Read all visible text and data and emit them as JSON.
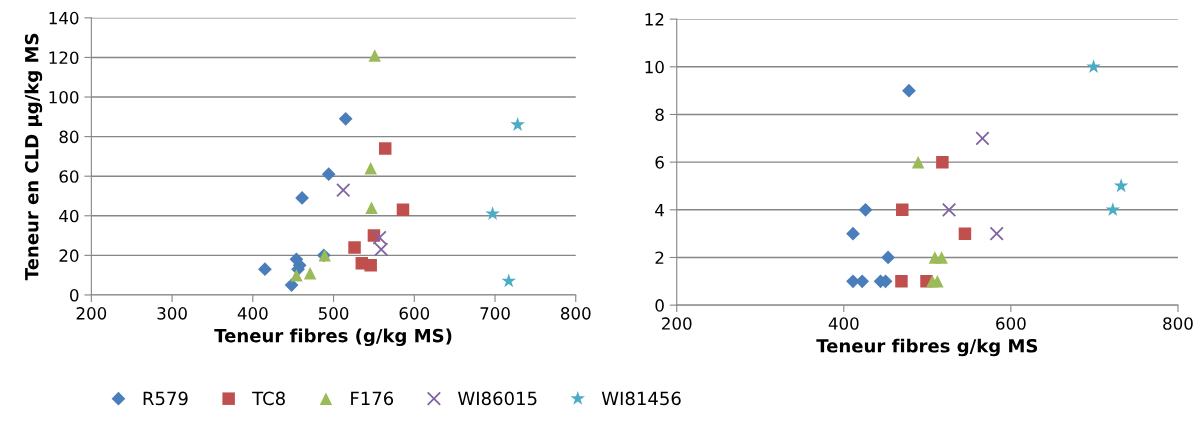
{
  "chart_data": [
    {
      "type": "scatter",
      "xlabel": "Teneur fibres (g/kg MS)",
      "ylabel": "Teneur en CLD µg/kg MS",
      "xlim": [
        200,
        800
      ],
      "xticks": [
        200,
        300,
        400,
        500,
        600,
        700,
        800
      ],
      "ylim": [
        0,
        140
      ],
      "yticks": [
        0,
        20,
        40,
        60,
        80,
        100,
        120,
        140
      ],
      "grid": "y",
      "legend": "bottom",
      "series": [
        {
          "name": "R579",
          "color": "#4a7ebb",
          "marker": "diamond",
          "x": [
            415,
            448,
            454,
            458,
            456,
            488,
            461,
            494,
            515
          ],
          "values": [
            13,
            5,
            18,
            15,
            13,
            20,
            49,
            61,
            89
          ]
        },
        {
          "name": "TC8",
          "color": "#c0504d",
          "marker": "square",
          "x": [
            564,
            586,
            550,
            526,
            535,
            546
          ],
          "values": [
            74,
            43,
            30,
            24,
            16,
            15
          ]
        },
        {
          "name": "F176",
          "color": "#9bbb59",
          "marker": "triangle",
          "x": [
            551,
            546,
            547,
            489,
            471,
            454
          ],
          "values": [
            121,
            64,
            44,
            20,
            11,
            10
          ]
        },
        {
          "name": "WI86015",
          "color": "#8064a2",
          "marker": "cross",
          "x": [
            512,
            557,
            559
          ],
          "values": [
            53,
            29,
            23
          ]
        },
        {
          "name": "WI81456",
          "color": "#4bacc6",
          "marker": "star",
          "x": [
            728,
            697,
            717
          ],
          "values": [
            86,
            41,
            7
          ]
        }
      ]
    },
    {
      "type": "scatter",
      "xlabel": "Teneur fibres g/kg MS",
      "xlim": [
        200,
        800
      ],
      "xticks": [
        200,
        400,
        600,
        800
      ],
      "ylim": [
        0,
        12
      ],
      "yticks": [
        0,
        2,
        4,
        6,
        8,
        10,
        12
      ],
      "grid": "y",
      "series": [
        {
          "color": "#4a7ebb",
          "marker": "diamond",
          "x": [
            478,
            426,
            411,
            453,
            411,
            422,
            444,
            450
          ],
          "values": [
            9,
            4,
            3,
            2,
            1,
            1,
            1,
            1
          ]
        },
        {
          "color": "#c0504d",
          "marker": "square",
          "x": [
            518,
            470,
            545,
            469,
            499
          ],
          "values": [
            6,
            4,
            3,
            1,
            1
          ]
        },
        {
          "color": "#9bbb59",
          "marker": "triangle",
          "x": [
            489,
            509,
            517,
            506,
            512
          ],
          "values": [
            6,
            2,
            2,
            1,
            1
          ]
        },
        {
          "color": "#8064a2",
          "marker": "cross",
          "x": [
            566,
            526,
            583
          ],
          "values": [
            7,
            4,
            3
          ]
        },
        {
          "color": "#4bacc6",
          "marker": "star",
          "x": [
            699,
            732,
            722
          ],
          "values": [
            10,
            5,
            4
          ]
        }
      ]
    }
  ]
}
